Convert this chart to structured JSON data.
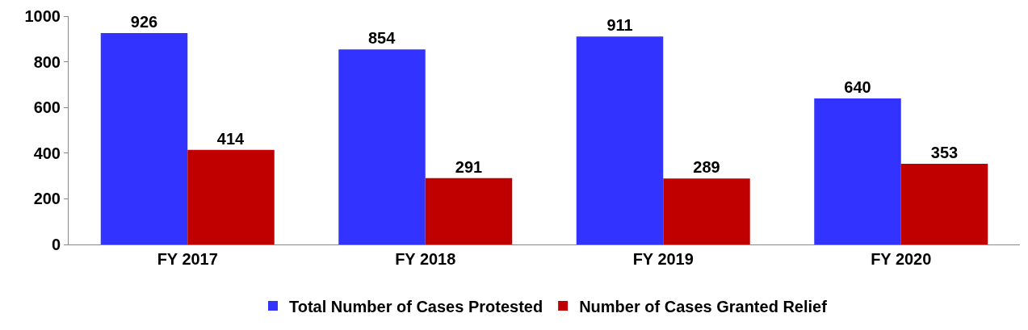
{
  "chart_data": {
    "type": "bar",
    "categories": [
      "FY 2017",
      "FY 2018",
      "FY 2019",
      "FY 2020"
    ],
    "series": [
      {
        "name": "Total Number of Cases Protested",
        "color": "#3333ff",
        "values": [
          926,
          854,
          911,
          640
        ]
      },
      {
        "name": "Number of Cases Granted Relief",
        "color": "#c00000",
        "values": [
          414,
          291,
          289,
          353
        ]
      }
    ],
    "ylim": [
      0,
      1000
    ],
    "yticks": [
      0,
      200,
      400,
      600,
      800,
      1000
    ],
    "data_labels": true,
    "legend": "bottom"
  }
}
